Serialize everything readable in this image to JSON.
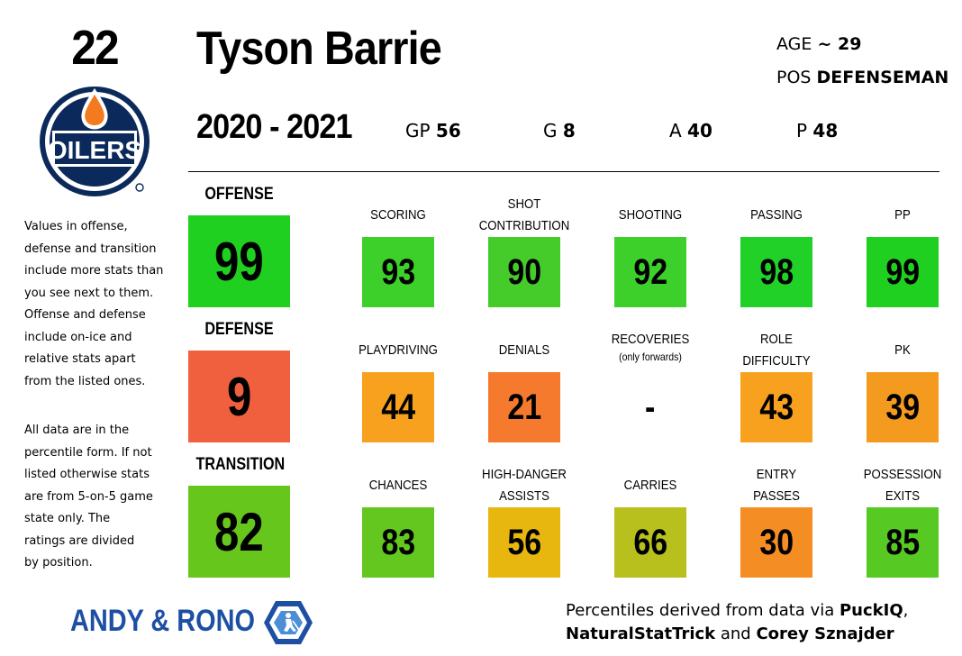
{
  "player": {
    "number": "22",
    "name": "Tyson Barrie",
    "age_label": "AGE",
    "age_value": "~ 29",
    "pos_label": "POS",
    "pos_value": "DEFENSEMAN",
    "team_logo": "oilers-logo",
    "team_logo_text": "OILERS"
  },
  "season": {
    "label": "2020 - 2021",
    "stats": [
      {
        "label": "GP",
        "value": "56"
      },
      {
        "label": "G",
        "value": "8"
      },
      {
        "label": "A",
        "value": "40"
      },
      {
        "label": "P",
        "value": "48"
      }
    ]
  },
  "notes": {
    "p1": [
      "Values in offense,",
      "defense and transition",
      "include more stats than",
      "you see next to them.",
      "Offense and defense",
      "include on-ice and",
      "relative stats apart",
      "from the listed ones."
    ],
    "p2": [
      "All data are in the",
      "percentile form. If not",
      "listed otherwise stats",
      "are from 5-on-5 game",
      "state only. The",
      "ratings are divided",
      "by position."
    ]
  },
  "categories": [
    {
      "title": "OFFENSE",
      "value": "99",
      "color": "#20d020",
      "metrics": [
        {
          "label": [
            "SCORING"
          ],
          "value": "93",
          "color": "#3dcf2a"
        },
        {
          "label": [
            "SHOT",
            "CONTRIBUTION"
          ],
          "value": "90",
          "color": "#45cc2a"
        },
        {
          "label": [
            "SHOOTING"
          ],
          "value": "92",
          "color": "#3dcf2a"
        },
        {
          "label": [
            "PASSING"
          ],
          "value": "98",
          "color": "#22d128"
        },
        {
          "label": [
            "PP"
          ],
          "value": "99",
          "color": "#20d020"
        }
      ]
    },
    {
      "title": "DEFENSE",
      "value": "9",
      "color": "#f0603f",
      "metrics": [
        {
          "label": [
            "PLAYDRIVING"
          ],
          "value": "44",
          "color": "#f7a11f"
        },
        {
          "label": [
            "DENIALS"
          ],
          "value": "21",
          "color": "#f57a2e"
        },
        {
          "label": [
            "RECOVERIES"
          ],
          "note": "(only forwards)",
          "value": "-",
          "color": "#ffffff"
        },
        {
          "label": [
            "ROLE",
            "DIFFICULTY"
          ],
          "value": "43",
          "color": "#f7a11f"
        },
        {
          "label": [
            "PK"
          ],
          "value": "39",
          "color": "#f49a1e"
        }
      ]
    },
    {
      "title": "TRANSITION",
      "value": "82",
      "color": "#66c61c",
      "metrics": [
        {
          "label": [
            "CHANCES"
          ],
          "value": "83",
          "color": "#63c720"
        },
        {
          "label": [
            "HIGH-DANGER",
            "ASSISTS"
          ],
          "value": "56",
          "color": "#e7b70f"
        },
        {
          "label": [
            "CARRIES"
          ],
          "value": "66",
          "color": "#b8c01d"
        },
        {
          "label": [
            "ENTRY",
            "PASSES"
          ],
          "value": "30",
          "color": "#f58d25"
        },
        {
          "label": [
            "POSSESSION",
            "EXITS"
          ],
          "value": "85",
          "color": "#56c922"
        }
      ]
    }
  ],
  "footer": {
    "brand": "ANDY & RONO",
    "brand_logo": "hockey-player-hexagon-logo",
    "credits_line1_prefix": "Percentiles derived from data via ",
    "credits_line1_bold": "PuckIQ",
    "credits_line1_suffix": ",",
    "credits_line2_bold1": "NaturalStatTrick",
    "credits_line2_mid": " and ",
    "credits_line2_bold2": "Corey Sznajder"
  }
}
